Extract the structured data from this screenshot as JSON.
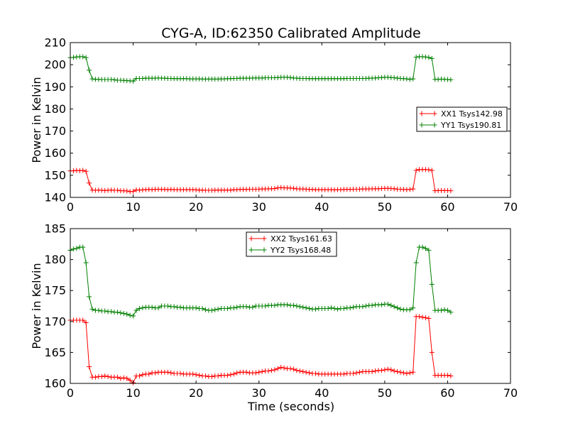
{
  "title": "CYG-A, ID:62350 Calibrated Amplitude",
  "xlabel": "Time (seconds)",
  "chart_data": [
    {
      "type": "line",
      "ylabel": "Power in Kelvin",
      "xlim": [
        0,
        70
      ],
      "ylim": [
        140,
        210
      ],
      "x_ticks": [
        "0",
        "10",
        "20",
        "30",
        "40",
        "50",
        "60",
        "70"
      ],
      "y_ticks": [
        "140",
        "150",
        "160",
        "170",
        "180",
        "190",
        "200",
        "210"
      ],
      "legend_position": "center-right",
      "grid": false,
      "series": [
        {
          "name": "XX1 Tsys142.98",
          "color": "#ff0000",
          "x": [
            0.0,
            0.5,
            1.0,
            1.5,
            2.0,
            2.5,
            3.0,
            3.5,
            4.0,
            4.5,
            5.0,
            5.5,
            6.0,
            6.5,
            7.0,
            7.5,
            8.0,
            8.5,
            9.0,
            9.5,
            10.0,
            10.5,
            11.0,
            11.5,
            12.0,
            12.5,
            13.0,
            13.5,
            14.0,
            14.5,
            15.0,
            15.5,
            16.0,
            16.5,
            17.0,
            17.5,
            18.0,
            18.5,
            19.0,
            19.5,
            20.0,
            20.5,
            21.0,
            21.5,
            22.0,
            22.5,
            23.0,
            23.5,
            24.0,
            24.5,
            25.0,
            25.5,
            26.0,
            26.5,
            27.0,
            27.5,
            28.0,
            28.5,
            29.0,
            29.5,
            30.0,
            30.5,
            31.0,
            31.5,
            32.0,
            32.5,
            33.0,
            33.5,
            34.0,
            34.5,
            35.0,
            35.5,
            36.0,
            36.5,
            37.0,
            37.5,
            38.0,
            38.5,
            39.0,
            39.5,
            40.0,
            40.5,
            41.0,
            41.5,
            42.0,
            42.5,
            43.0,
            43.5,
            44.0,
            44.5,
            45.0,
            45.5,
            46.0,
            46.5,
            47.0,
            47.5,
            48.0,
            48.5,
            49.0,
            49.5,
            50.0,
            50.5,
            51.0,
            51.5,
            52.0,
            52.5,
            53.0,
            53.5,
            54.0,
            54.5,
            55.0,
            55.5,
            56.0,
            56.5,
            57.0,
            57.5,
            58.0,
            58.5,
            59.0,
            59.5,
            60.0,
            60.5
          ],
          "y": [
            152.0,
            152.0,
            152.2,
            152.1,
            152.2,
            151.8,
            146.5,
            143.3,
            143.2,
            143.3,
            143.2,
            143.1,
            143.2,
            143.3,
            143.2,
            143.2,
            143.0,
            143.0,
            142.9,
            142.6,
            142.7,
            143.4,
            143.3,
            143.4,
            143.5,
            143.6,
            143.5,
            143.6,
            143.7,
            143.6,
            143.6,
            143.5,
            143.6,
            143.5,
            143.5,
            143.5,
            143.5,
            143.5,
            143.5,
            143.5,
            143.4,
            143.3,
            143.3,
            143.2,
            143.2,
            143.2,
            143.3,
            143.3,
            143.3,
            143.3,
            143.3,
            143.3,
            143.5,
            143.5,
            143.6,
            143.6,
            143.6,
            143.7,
            143.7,
            143.7,
            143.7,
            143.8,
            143.8,
            143.9,
            143.9,
            144.0,
            144.3,
            144.4,
            144.3,
            144.3,
            144.2,
            144.1,
            143.9,
            143.8,
            143.8,
            143.7,
            143.6,
            143.6,
            143.5,
            143.5,
            143.5,
            143.5,
            143.5,
            143.5,
            143.4,
            143.5,
            143.5,
            143.6,
            143.6,
            143.6,
            143.7,
            143.7,
            143.7,
            143.8,
            143.8,
            143.8,
            143.9,
            143.9,
            143.9,
            144.0,
            144.1,
            144.1,
            144.0,
            143.9,
            143.7,
            143.7,
            143.6,
            143.5,
            143.6,
            143.8,
            152.2,
            152.6,
            152.6,
            152.6,
            152.5,
            152.2,
            143.0,
            143.1,
            143.1,
            143.1,
            143.1,
            143.0
          ]
        },
        {
          "name": "YY1 Tsys190.81",
          "color": "#008000",
          "x": [
            0.0,
            0.5,
            1.0,
            1.5,
            2.0,
            2.5,
            3.0,
            3.5,
            4.0,
            4.5,
            5.0,
            5.5,
            6.0,
            6.5,
            7.0,
            7.5,
            8.0,
            8.5,
            9.0,
            9.5,
            10.0,
            10.5,
            11.0,
            11.5,
            12.0,
            12.5,
            13.0,
            13.5,
            14.0,
            14.5,
            15.0,
            15.5,
            16.0,
            16.5,
            17.0,
            17.5,
            18.0,
            18.5,
            19.0,
            19.5,
            20.0,
            20.5,
            21.0,
            21.5,
            22.0,
            22.5,
            23.0,
            23.5,
            24.0,
            24.5,
            25.0,
            25.5,
            26.0,
            26.5,
            27.0,
            27.5,
            28.0,
            28.5,
            29.0,
            29.5,
            30.0,
            30.5,
            31.0,
            31.5,
            32.0,
            32.5,
            33.0,
            33.5,
            34.0,
            34.5,
            35.0,
            35.5,
            36.0,
            36.5,
            37.0,
            37.5,
            38.0,
            38.5,
            39.0,
            39.5,
            40.0,
            40.5,
            41.0,
            41.5,
            42.0,
            42.5,
            43.0,
            43.5,
            44.0,
            44.5,
            45.0,
            45.5,
            46.0,
            46.5,
            47.0,
            47.5,
            48.0,
            48.5,
            49.0,
            49.5,
            50.0,
            50.5,
            51.0,
            51.5,
            52.0,
            52.5,
            53.0,
            53.5,
            54.0,
            54.5,
            55.0,
            55.5,
            56.0,
            56.5,
            57.0,
            57.5,
            58.0,
            58.5,
            59.0,
            59.5,
            60.0,
            60.5
          ],
          "y": [
            203.2,
            203.3,
            203.5,
            203.6,
            203.6,
            203.2,
            197.5,
            193.6,
            193.4,
            193.4,
            193.3,
            193.3,
            193.3,
            193.3,
            193.2,
            193.0,
            193.0,
            192.9,
            192.8,
            192.7,
            192.6,
            193.8,
            193.8,
            193.8,
            193.9,
            193.9,
            193.9,
            193.9,
            194.0,
            193.9,
            193.9,
            193.8,
            193.8,
            193.7,
            193.7,
            193.7,
            193.7,
            193.7,
            193.6,
            193.6,
            193.6,
            193.6,
            193.5,
            193.5,
            193.5,
            193.5,
            193.5,
            193.5,
            193.6,
            193.6,
            193.7,
            193.7,
            193.8,
            193.8,
            193.9,
            193.9,
            193.9,
            193.9,
            194.0,
            194.0,
            194.0,
            194.0,
            194.1,
            194.1,
            194.1,
            194.1,
            194.2,
            194.3,
            194.3,
            194.3,
            194.2,
            194.0,
            193.9,
            193.8,
            193.8,
            193.8,
            193.7,
            193.7,
            193.7,
            193.7,
            193.7,
            193.7,
            193.7,
            193.7,
            193.7,
            193.7,
            193.7,
            193.7,
            193.8,
            193.8,
            193.8,
            193.8,
            193.8,
            193.8,
            193.8,
            193.9,
            193.9,
            194.0,
            194.1,
            194.2,
            194.3,
            194.3,
            194.2,
            194.1,
            193.9,
            193.8,
            193.7,
            193.6,
            193.4,
            193.6,
            203.4,
            203.6,
            203.6,
            203.5,
            203.3,
            202.8,
            193.4,
            193.4,
            193.5,
            193.4,
            193.3,
            193.2
          ]
        }
      ]
    },
    {
      "type": "line",
      "ylabel": "Power in Kelvin",
      "xlabel": "Time (seconds)",
      "xlim": [
        0,
        70
      ],
      "ylim": [
        160,
        185
      ],
      "x_ticks": [
        "0",
        "10",
        "20",
        "30",
        "40",
        "50",
        "60",
        "70"
      ],
      "y_ticks": [
        "160",
        "165",
        "170",
        "175",
        "180",
        "185"
      ],
      "legend_position": "top-center",
      "grid": false,
      "series": [
        {
          "name": "XX2 Tsys161.63",
          "color": "#ff0000",
          "x": [
            0.0,
            0.5,
            1.0,
            1.5,
            2.0,
            2.5,
            3.0,
            3.5,
            4.0,
            4.5,
            5.0,
            5.5,
            6.0,
            6.5,
            7.0,
            7.5,
            8.0,
            8.5,
            9.0,
            9.5,
            10.0,
            10.5,
            11.0,
            11.5,
            12.0,
            12.5,
            13.0,
            13.5,
            14.0,
            14.5,
            15.0,
            15.5,
            16.0,
            16.5,
            17.0,
            17.5,
            18.0,
            18.5,
            19.0,
            19.5,
            20.0,
            20.5,
            21.0,
            21.5,
            22.0,
            22.5,
            23.0,
            23.5,
            24.0,
            24.5,
            25.0,
            25.5,
            26.0,
            26.5,
            27.0,
            27.5,
            28.0,
            28.5,
            29.0,
            29.5,
            30.0,
            30.5,
            31.0,
            31.5,
            32.0,
            32.5,
            33.0,
            33.5,
            34.0,
            34.5,
            35.0,
            35.5,
            36.0,
            36.5,
            37.0,
            37.5,
            38.0,
            38.5,
            39.0,
            39.5,
            40.0,
            40.5,
            41.0,
            41.5,
            42.0,
            42.5,
            43.0,
            43.5,
            44.0,
            44.5,
            45.0,
            45.5,
            46.0,
            46.5,
            47.0,
            47.5,
            48.0,
            48.5,
            49.0,
            49.5,
            50.0,
            50.5,
            51.0,
            51.5,
            52.0,
            52.5,
            53.0,
            53.5,
            54.0,
            54.5,
            55.0,
            55.5,
            56.0,
            56.5,
            57.0,
            57.5,
            58.0,
            58.5,
            59.0,
            59.5,
            60.0,
            60.5
          ],
          "y": [
            170.2,
            170.2,
            170.2,
            170.2,
            170.2,
            169.8,
            162.7,
            161.0,
            161.0,
            161.1,
            161.1,
            161.2,
            161.1,
            161.0,
            161.0,
            161.0,
            160.8,
            160.9,
            160.8,
            160.5,
            160.1,
            161.2,
            161.2,
            161.4,
            161.5,
            161.5,
            161.7,
            161.7,
            161.8,
            161.8,
            161.8,
            161.8,
            161.7,
            161.6,
            161.6,
            161.6,
            161.5,
            161.5,
            161.5,
            161.5,
            161.4,
            161.3,
            161.2,
            161.2,
            161.1,
            161.1,
            161.2,
            161.2,
            161.3,
            161.3,
            161.3,
            161.4,
            161.5,
            161.7,
            161.8,
            161.8,
            161.8,
            161.7,
            161.7,
            161.7,
            161.8,
            161.9,
            162.0,
            162.0,
            162.1,
            162.2,
            162.4,
            162.6,
            162.5,
            162.4,
            162.4,
            162.3,
            162.1,
            162.0,
            161.9,
            161.8,
            161.7,
            161.6,
            161.6,
            161.5,
            161.5,
            161.5,
            161.5,
            161.5,
            161.5,
            161.5,
            161.5,
            161.5,
            161.6,
            161.6,
            161.6,
            161.7,
            161.8,
            161.9,
            161.9,
            161.9,
            161.9,
            162.0,
            162.1,
            162.1,
            162.2,
            162.3,
            162.2,
            162.0,
            161.9,
            161.8,
            161.7,
            161.6,
            161.7,
            161.8,
            170.8,
            170.8,
            170.7,
            170.6,
            170.5,
            165.0,
            161.3,
            161.3,
            161.3,
            161.3,
            161.3,
            161.2
          ]
        },
        {
          "name": "YY2 Tsys168.48",
          "color": "#008000",
          "x": [
            0.0,
            0.5,
            1.0,
            1.5,
            2.0,
            2.5,
            3.0,
            3.5,
            4.0,
            4.5,
            5.0,
            5.5,
            6.0,
            6.5,
            7.0,
            7.5,
            8.0,
            8.5,
            9.0,
            9.5,
            10.0,
            10.5,
            11.0,
            11.5,
            12.0,
            12.5,
            13.0,
            13.5,
            14.0,
            14.5,
            15.0,
            15.5,
            16.0,
            16.5,
            17.0,
            17.5,
            18.0,
            18.5,
            19.0,
            19.5,
            20.0,
            20.5,
            21.0,
            21.5,
            22.0,
            22.5,
            23.0,
            23.5,
            24.0,
            24.5,
            25.0,
            25.5,
            26.0,
            26.5,
            27.0,
            27.5,
            28.0,
            28.5,
            29.0,
            29.5,
            30.0,
            30.5,
            31.0,
            31.5,
            32.0,
            32.5,
            33.0,
            33.5,
            34.0,
            34.5,
            35.0,
            35.5,
            36.0,
            36.5,
            37.0,
            37.5,
            38.0,
            38.5,
            39.0,
            39.5,
            40.0,
            40.5,
            41.0,
            41.5,
            42.0,
            42.5,
            43.0,
            43.5,
            44.0,
            44.5,
            45.0,
            45.5,
            46.0,
            46.5,
            47.0,
            47.5,
            48.0,
            48.5,
            49.0,
            49.5,
            50.0,
            50.5,
            51.0,
            51.5,
            52.0,
            52.5,
            53.0,
            53.5,
            54.0,
            54.5,
            55.0,
            55.5,
            56.0,
            56.5,
            57.0,
            57.5,
            58.0,
            58.5,
            59.0,
            59.5,
            60.0,
            60.5
          ],
          "y": [
            181.5,
            181.7,
            181.8,
            182.0,
            182.0,
            179.5,
            174.0,
            172.0,
            171.8,
            171.8,
            171.7,
            171.7,
            171.6,
            171.6,
            171.5,
            171.5,
            171.4,
            171.3,
            171.2,
            171.0,
            170.9,
            171.8,
            172.1,
            172.2,
            172.3,
            172.3,
            172.3,
            172.2,
            172.2,
            172.5,
            172.5,
            172.5,
            172.4,
            172.4,
            172.3,
            172.3,
            172.2,
            172.2,
            172.2,
            172.2,
            172.2,
            172.1,
            172.1,
            171.9,
            171.8,
            171.8,
            171.9,
            172.0,
            172.1,
            172.1,
            172.1,
            172.2,
            172.2,
            172.3,
            172.4,
            172.4,
            172.4,
            172.3,
            172.3,
            172.5,
            172.5,
            172.5,
            172.5,
            172.6,
            172.6,
            172.6,
            172.7,
            172.7,
            172.7,
            172.7,
            172.6,
            172.6,
            172.5,
            172.4,
            172.3,
            172.2,
            172.1,
            172.0,
            172.0,
            172.1,
            172.1,
            172.1,
            172.1,
            172.2,
            172.1,
            172.0,
            172.1,
            172.1,
            172.2,
            172.2,
            172.3,
            172.4,
            172.4,
            172.4,
            172.5,
            172.6,
            172.6,
            172.7,
            172.7,
            172.7,
            172.8,
            172.8,
            172.6,
            172.4,
            172.2,
            172.0,
            171.9,
            171.9,
            171.9,
            172.2,
            179.5,
            182.0,
            182.0,
            181.8,
            181.5,
            176.0,
            171.8,
            171.8,
            171.8,
            171.9,
            171.8,
            171.5
          ]
        }
      ]
    }
  ]
}
